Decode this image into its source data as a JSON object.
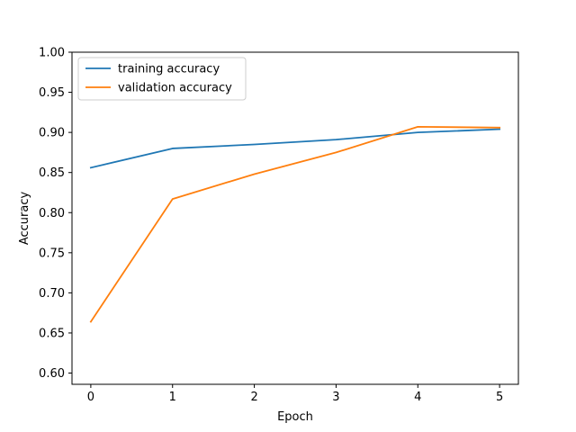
{
  "chart_data": {
    "type": "line",
    "title": "",
    "xlabel": "Epoch",
    "ylabel": "Accuracy",
    "x": [
      0,
      1,
      2,
      3,
      4,
      5
    ],
    "xlim": [
      -0.23,
      5.23
    ],
    "ylim": [
      0.586,
      1.0
    ],
    "xticks": [
      "0",
      "1",
      "2",
      "3",
      "4",
      "5"
    ],
    "yticks": [
      "0.60",
      "0.65",
      "0.70",
      "0.75",
      "0.80",
      "0.85",
      "0.90",
      "0.95",
      "1.00"
    ],
    "grid": false,
    "legend_position": "upper-left",
    "series": [
      {
        "name": "training accuracy",
        "color": "#1f77b4",
        "values": [
          0.856,
          0.88,
          0.885,
          0.891,
          0.9,
          0.904
        ]
      },
      {
        "name": "validation accuracy",
        "color": "#ff7f0e",
        "values": [
          0.664,
          0.817,
          0.848,
          0.875,
          0.907,
          0.906
        ]
      }
    ]
  }
}
